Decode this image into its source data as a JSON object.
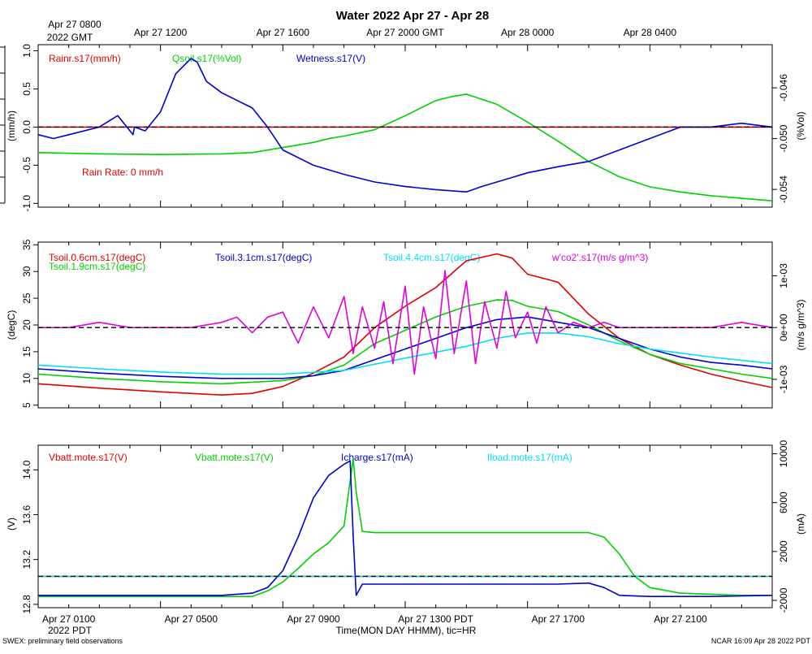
{
  "title": "Water 2022 Apr 27 - Apr 28",
  "top_time_axis": {
    "ticks": [
      "Apr 27 1200",
      "Apr 27 1600",
      "Apr 27 2000 GMT",
      "Apr 28 0000",
      "Apr 28 0400"
    ],
    "start_line1": "Apr 27 0800",
    "start_line2": "2022 GMT"
  },
  "bottom_time_axis": {
    "ticks": [
      "Apr 27 0100",
      "Apr 27 0500",
      "Apr 27 0900",
      "Apr 27 1300 PDT",
      "Apr 27 1700",
      "Apr 27 2100"
    ],
    "start_line2": "2022 PDT",
    "label": "Time(MON DAY HHMM), tic=HR"
  },
  "footer": {
    "left": "SWEX: preliminary field observations",
    "right": "NCAR 16:09 Apr 28 2022 PDT"
  },
  "colors": {
    "red": "#e00000",
    "green": "#00d000",
    "blue": "#0000d0",
    "cyan": "#00e0f0",
    "magenta": "#e000e0",
    "black": "#000000"
  },
  "chart_data": [
    {
      "type": "line",
      "panel": "water",
      "x_unit": "hours since Apr 27 0800 GMT",
      "xlim": [
        0,
        24
      ],
      "left_axis": {
        "label": "(mm/h)",
        "ylim": [
          -1.05,
          1.08
        ],
        "ticks": [
          "-1.0",
          "-0.5",
          "0.0",
          "0.5",
          "1.0"
        ],
        "tick_values": [
          -1.0,
          -0.5,
          0.0,
          0.5,
          1.0
        ]
      },
      "right_axis": {
        "label": "(%Vol)",
        "ylim": [
          -0.0554,
          -0.0426
        ],
        "ticks": [
          "-0.054",
          "-0.050",
          "-0.046"
        ],
        "tick_values": [
          -0.054,
          -0.05,
          -0.046
        ]
      },
      "legend": [
        "Rainr.s17(mm/h)",
        "Qsoil.s17(%Vol)",
        "Wetness.s17(V)"
      ],
      "annotation": "Rain Rate: 0 mm/h",
      "series": [
        {
          "name": "Rainr.s17(mm/h)",
          "color": "red",
          "axis": "left",
          "x": [
            0,
            24
          ],
          "y": [
            0.0,
            0.0
          ]
        },
        {
          "name": "Qsoil.s17(%Vol)",
          "color": "green",
          "axis": "right",
          "x": [
            0,
            2,
            4,
            6,
            7,
            8,
            9,
            9.5,
            10,
            11,
            12,
            13,
            13.5,
            14,
            15,
            16,
            17,
            18,
            19,
            20,
            21,
            22,
            23,
            24
          ],
          "y": [
            -0.0511,
            -0.0512,
            -0.05125,
            -0.0512,
            -0.0511,
            -0.0507,
            -0.0503,
            -0.05,
            -0.0498,
            -0.0493,
            -0.0482,
            -0.047,
            -0.0467,
            -0.0465,
            -0.0473,
            -0.0487,
            -0.0502,
            -0.0518,
            -0.053,
            -0.0538,
            -0.0542,
            -0.0545,
            -0.0547,
            -0.0549
          ]
        },
        {
          "name": "Wetness.s17(V)",
          "color": "blue",
          "axis": "left",
          "x": [
            0,
            0.5,
            1,
            2,
            2.6,
            3.1,
            3.15,
            3.5,
            4,
            4.5,
            5,
            5.2,
            5.5,
            6,
            7,
            7.5,
            8,
            9,
            10,
            11,
            12,
            13,
            14,
            14.5,
            15,
            16,
            17,
            18,
            19,
            20,
            21,
            22,
            23,
            24
          ],
          "y": [
            -0.1,
            -0.15,
            -0.1,
            0.0,
            0.15,
            -0.1,
            0.0,
            -0.05,
            0.2,
            0.7,
            0.9,
            0.85,
            0.6,
            0.45,
            0.25,
            0.0,
            -0.3,
            -0.5,
            -0.62,
            -0.72,
            -0.78,
            -0.82,
            -0.85,
            -0.78,
            -0.72,
            -0.6,
            -0.52,
            -0.45,
            -0.3,
            -0.15,
            0.0,
            0.0,
            0.05,
            0.0
          ]
        }
      ]
    },
    {
      "type": "line",
      "panel": "soil-temperature",
      "x_unit": "hours since Apr 27 0800 GMT",
      "xlim": [
        0,
        24
      ],
      "left_axis": {
        "label": "(degC)",
        "ylim": [
          4.5,
          35.5
        ],
        "ticks": [
          "5",
          "10",
          "15",
          "20",
          "25",
          "30",
          "35"
        ],
        "tick_values": [
          5,
          10,
          15,
          20,
          25,
          30,
          35
        ]
      },
      "right_axis": {
        "label": "(m/s g/m^3)",
        "ylim": [
          -0.00155,
          0.00165
        ],
        "ticks": [
          "-1e-03",
          "0e+00",
          "1e-03"
        ],
        "tick_values": [
          -0.001,
          0.0,
          0.001
        ]
      },
      "legend": [
        "Tsoil.0.6cm.s17(degC)",
        "Tsoil.1.9cm.s17(degC)",
        "Tsoil.3.1cm.s17(degC)",
        "Tsoil.4.4cm.s17(degC)",
        "w'co2'.s17(m/s g/m^3)"
      ],
      "series": [
        {
          "name": "Tsoil.0.6cm.s17(degC)",
          "color": "red",
          "axis": "left",
          "x": [
            0,
            2,
            4,
            6,
            7,
            8,
            9,
            10,
            11,
            12,
            13,
            14,
            15,
            15.5,
            16,
            17,
            18,
            19,
            20,
            21,
            22,
            23,
            24
          ],
          "y": [
            9.0,
            8.2,
            7.5,
            6.9,
            7.2,
            8.5,
            11.0,
            14.0,
            19.5,
            23.5,
            27.0,
            32.0,
            33.3,
            32.5,
            29.5,
            28.0,
            22.0,
            17.5,
            14.5,
            12.5,
            10.8,
            9.5,
            8.3
          ]
        },
        {
          "name": "Tsoil.1.9cm.s17(degC)",
          "color": "green",
          "axis": "left",
          "x": [
            0,
            2,
            4,
            6,
            8,
            9,
            10,
            11,
            12,
            13,
            14,
            15,
            15.5,
            16,
            17,
            18,
            19,
            20,
            21,
            22,
            23,
            24
          ],
          "y": [
            10.8,
            10.0,
            9.4,
            9.0,
            9.6,
            10.5,
            12.5,
            16.5,
            19.0,
            21.5,
            23.5,
            24.7,
            24.6,
            23.5,
            22.5,
            20.0,
            17.0,
            14.5,
            12.8,
            11.8,
            10.8,
            10.0
          ]
        },
        {
          "name": "Tsoil.3.1cm.s17(degC)",
          "color": "blue",
          "axis": "left",
          "x": [
            0,
            2,
            4,
            6,
            8,
            9,
            10,
            11,
            12,
            13,
            14,
            15,
            16,
            17,
            18,
            19,
            20,
            21,
            22,
            23,
            24
          ],
          "y": [
            11.8,
            11.0,
            10.4,
            10.0,
            10.0,
            10.5,
            11.5,
            13.5,
            15.5,
            17.5,
            19.5,
            21.0,
            21.5,
            20.5,
            19.5,
            17.5,
            15.5,
            14.0,
            13.0,
            12.5,
            11.8
          ]
        },
        {
          "name": "Tsoil.4.4cm.s17(degC)",
          "color": "cyan",
          "axis": "left",
          "x": [
            0,
            2,
            4,
            6,
            8,
            10,
            12,
            14,
            15,
            16,
            17,
            18,
            19,
            20,
            22,
            24
          ],
          "y": [
            12.5,
            11.8,
            11.2,
            10.8,
            10.8,
            11.5,
            13.8,
            16.0,
            17.5,
            18.5,
            18.5,
            17.8,
            16.5,
            15.5,
            14.0,
            12.8
          ]
        },
        {
          "name": "w'co2'.s17(m/s g/m^3)",
          "color": "magenta",
          "axis": "right",
          "x": [
            0,
            1,
            2,
            3,
            4,
            5,
            6,
            6.5,
            7,
            7.5,
            8,
            8.5,
            9,
            9.5,
            10,
            10.3,
            10.6,
            11,
            11.3,
            11.6,
            12,
            12.3,
            12.6,
            13,
            13.3,
            13.6,
            14,
            14.3,
            14.6,
            15,
            15.3,
            15.6,
            16,
            16.3,
            16.6,
            17,
            17.5,
            18,
            18.5,
            19,
            20,
            21,
            22,
            23,
            24
          ],
          "y": [
            0.0,
            0.0,
            0.0001,
            0.0,
            0.0,
            0.0,
            0.0001,
            0.0002,
            -0.0001,
            0.0002,
            0.0003,
            -0.0003,
            0.0004,
            -0.0002,
            0.0006,
            -0.0005,
            0.0004,
            -0.0004,
            0.0005,
            -0.0007,
            0.0008,
            -0.0009,
            0.0004,
            -0.0006,
            0.0011,
            -0.0005,
            0.0009,
            -0.0007,
            0.0005,
            -0.0004,
            0.0007,
            -0.0002,
            0.0003,
            -0.0003,
            0.0004,
            -0.0001,
            0.0001,
            0.0,
            0.0001,
            0.0,
            0.0,
            0.0,
            0.0,
            0.0001,
            0.0
          ]
        }
      ]
    },
    {
      "type": "line",
      "panel": "power",
      "x_unit": "hours since Apr 27 0800 GMT",
      "xlim": [
        0,
        24
      ],
      "left_axis": {
        "label": "(V)",
        "ylim": [
          12.77,
          14.22
        ],
        "ticks": [
          "12.8",
          "13.2",
          "13.6",
          "14.0"
        ],
        "tick_values": [
          12.8,
          13.2,
          13.6,
          14.0
        ]
      },
      "right_axis": {
        "label": "(mA)",
        "ylim": [
          -2600,
          10700
        ],
        "ticks": [
          "-2000",
          "2000",
          "6000",
          "10000"
        ],
        "tick_values": [
          -2000,
          2000,
          6000,
          10000
        ]
      },
      "legend": [
        "Vbatt.mote.s17(V)",
        "Vbatt.mote.s17(V)",
        "Icharge.s17(mA)",
        "Iload.mote.s17(mA)"
      ],
      "series": [
        {
          "name": "Vbatt.mote.s17(V)",
          "color": "red",
          "axis": "left",
          "x": [
            0,
            24
          ],
          "y": [
            13.05,
            13.05
          ]
        },
        {
          "name": "Vbatt.mote.s17(V)",
          "color": "green",
          "axis": "left",
          "x": [
            0,
            7,
            7.5,
            8,
            8.5,
            9,
            9.5,
            10,
            10.2,
            10.3,
            10.4,
            10.6,
            11,
            12,
            13,
            14,
            15,
            16,
            17,
            18,
            18.5,
            19,
            19.5,
            20,
            21,
            22,
            23,
            24
          ],
          "y": [
            12.87,
            12.87,
            12.92,
            13.0,
            13.12,
            13.25,
            13.35,
            13.5,
            13.9,
            14.1,
            13.8,
            13.45,
            13.44,
            13.44,
            13.44,
            13.44,
            13.44,
            13.44,
            13.44,
            13.44,
            13.4,
            13.25,
            13.05,
            12.95,
            12.9,
            12.89,
            12.88,
            12.88
          ]
        },
        {
          "name": "Icharge.s17(mA)",
          "color": "blue",
          "axis": "left",
          "x": [
            0,
            2,
            4,
            6,
            7,
            7.5,
            8,
            8.5,
            9,
            9.5,
            10,
            10.2,
            10.3,
            10.4,
            10.6,
            11,
            12,
            14,
            16,
            17,
            18,
            18.5,
            19,
            20,
            22,
            24
          ],
          "y": [
            12.88,
            12.88,
            12.88,
            12.88,
            12.9,
            12.95,
            13.1,
            13.4,
            13.75,
            13.95,
            14.05,
            14.08,
            13.4,
            12.88,
            12.98,
            12.98,
            12.98,
            12.98,
            12.98,
            12.98,
            12.99,
            12.95,
            12.88,
            12.87,
            12.87,
            12.88
          ]
        },
        {
          "name": "Iload.mote.s17(mA)",
          "color": "cyan",
          "axis": "left",
          "x": [
            0,
            24
          ],
          "y": [
            13.05,
            13.05
          ]
        }
      ]
    }
  ]
}
